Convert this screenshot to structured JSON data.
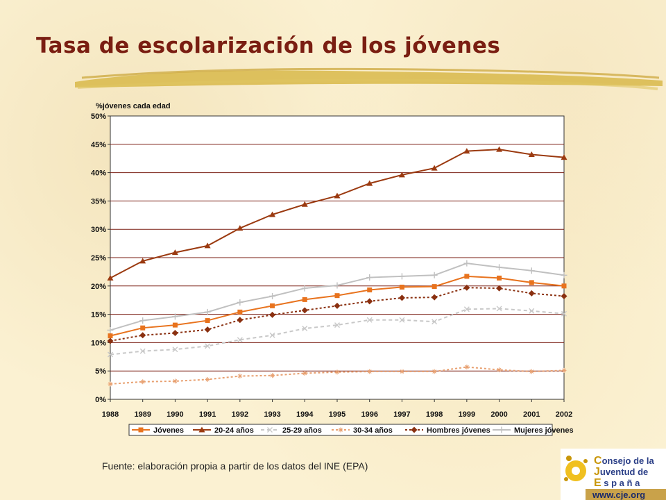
{
  "slide": {
    "title": "Tasa de escolarización de los jóvenes",
    "source": "Fuente: elaboración propia a partir de los datos del INE (EPA)"
  },
  "logo": {
    "lines": [
      "Consejo de la",
      "Juventud de",
      "España"
    ],
    "url": "www.cje.org",
    "colors": {
      "letters": "#c8960a",
      "text": "#2a3e86",
      "url_bg": "#c9a24a"
    }
  },
  "colors": {
    "title": "#7a1e12",
    "plot_bg": "#ffffff",
    "gridline": "#7a1e12",
    "stroke": "#d8b84a"
  },
  "chart_data": {
    "type": "line",
    "ylabel": "%jóvenes cada edad",
    "ylim": [
      0,
      50
    ],
    "yticks": [
      "0%",
      "5%",
      "10%",
      "15%",
      "20%",
      "25%",
      "30%",
      "35%",
      "40%",
      "45%",
      "50%"
    ],
    "categories": [
      "1988",
      "1989",
      "1990",
      "1991",
      "1992",
      "1993",
      "1994",
      "1995",
      "1996",
      "1997",
      "1998",
      "1999",
      "2000",
      "2001",
      "2002"
    ],
    "legend_position": "bottom",
    "grid": true,
    "series": [
      {
        "name": "Jóvenes",
        "color": "#e8731e",
        "dash": "solid",
        "marker": "square",
        "values": [
          11.2,
          12.6,
          13.1,
          13.9,
          15.4,
          16.5,
          17.6,
          18.3,
          19.3,
          19.8,
          19.9,
          21.7,
          21.4,
          20.6,
          20.0
        ]
      },
      {
        "name": "20-24 años",
        "color": "#9b3a10",
        "dash": "solid",
        "marker": "triangle",
        "values": [
          21.4,
          24.4,
          25.9,
          27.1,
          30.2,
          32.6,
          34.4,
          35.9,
          38.1,
          39.6,
          40.8,
          43.8,
          44.1,
          43.2,
          42.7
        ]
      },
      {
        "name": "25-29 años",
        "color": "#c8c8c8",
        "dash": "dashed",
        "marker": "x",
        "values": [
          7.9,
          8.5,
          8.8,
          9.4,
          10.5,
          11.3,
          12.5,
          13.1,
          14.0,
          14.0,
          13.7,
          15.9,
          16.0,
          15.6,
          15.1
        ]
      },
      {
        "name": "30-34 años",
        "color": "#e8a070",
        "dash": "dotted",
        "marker": "star",
        "values": [
          2.7,
          3.1,
          3.2,
          3.5,
          4.1,
          4.2,
          4.6,
          4.8,
          4.9,
          4.9,
          4.9,
          5.7,
          5.2,
          4.9,
          5.1
        ]
      },
      {
        "name": "Hombres jóvenes",
        "color": "#8a3010",
        "dash": "dotted",
        "marker": "diamond",
        "values": [
          10.3,
          11.3,
          11.7,
          12.3,
          14.0,
          14.9,
          15.7,
          16.5,
          17.3,
          17.9,
          18.0,
          19.7,
          19.6,
          18.7,
          18.2
        ]
      },
      {
        "name": "Mujeres jóvenes",
        "color": "#c0c0c0",
        "dash": "solid",
        "marker": "plus",
        "values": [
          12.2,
          13.9,
          14.6,
          15.4,
          17.1,
          18.2,
          19.6,
          20.1,
          21.5,
          21.7,
          21.9,
          24.0,
          23.3,
          22.7,
          21.9
        ]
      }
    ]
  }
}
